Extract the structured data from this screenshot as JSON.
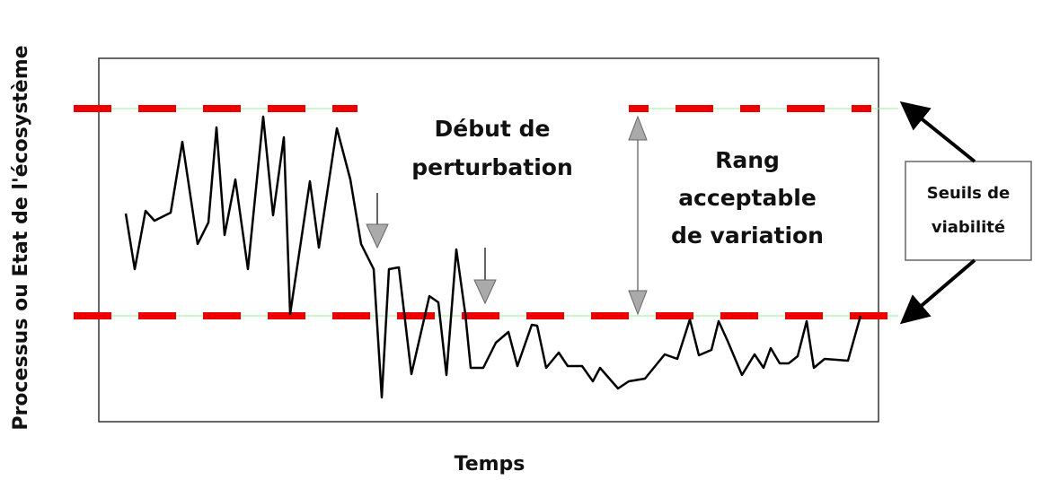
{
  "y_axis_label": "Processus ou Etat de l'écosystème",
  "x_axis_label": "Temps",
  "annotations": {
    "disturbance": [
      "Début de",
      "perturbation"
    ],
    "range": [
      "Rang",
      "acceptable",
      "de variation"
    ],
    "thresholds": [
      "Seuils de",
      "viabilité"
    ]
  }
}
